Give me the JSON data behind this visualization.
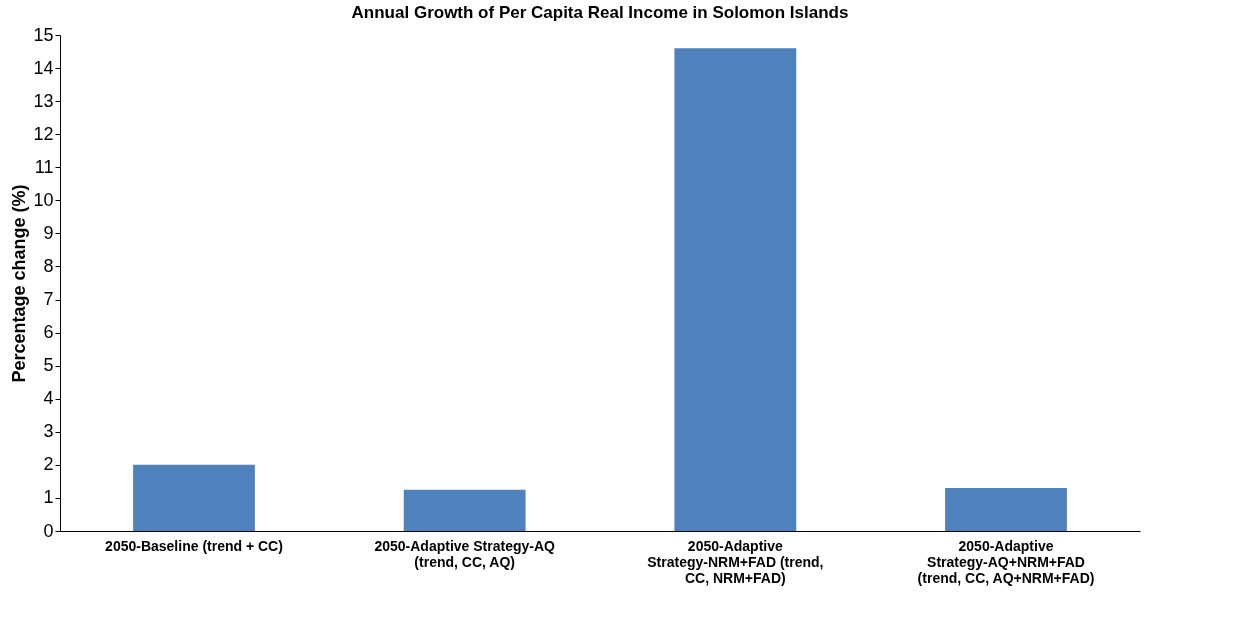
{
  "chart_data": {
    "type": "bar",
    "title": "Annual Growth of Per Capita Real Income in Solomon Islands",
    "ylabel": "Percentage change (%)",
    "categories": [
      "2050-Baseline (trend + CC)",
      "2050-Adaptive Strategy-AQ  (trend, CC, AQ)",
      "2050-Adaptive Strategy-NRM+FAD (trend, CC, NRM+FAD)",
      "2050-Adaptive Strategy-AQ+NRM+FAD (trend, CC, AQ+NRM+FAD)"
    ],
    "values": [
      2.0,
      1.25,
      14.6,
      1.3
    ],
    "color": "#4f81bd",
    "ylim": [
      0,
      15
    ],
    "yticks": [
      0,
      1,
      2,
      3,
      4,
      5,
      6,
      7,
      8,
      9,
      10,
      11,
      12,
      13,
      14,
      15
    ]
  }
}
